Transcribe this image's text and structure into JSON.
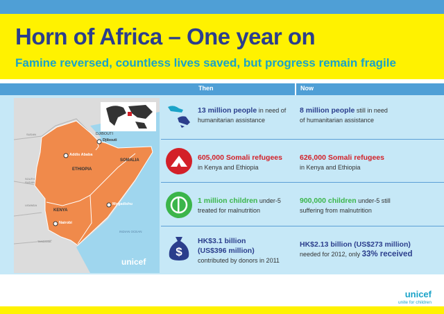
{
  "header": {
    "title": "Horn of Africa – One year on",
    "subtitle": "Famine reversed, countless lives saved, but progress remain fragile"
  },
  "columns": {
    "then": "Then",
    "now": "Now"
  },
  "map": {
    "labels": {
      "djibouti_country": "DJIBOUTI",
      "djibouti_city": "Djibouti",
      "addis_ababa": "Addis Ababa",
      "ethiopia": "ETHIOPIA",
      "somalia": "SOMALIA",
      "mogadishu": "Mogadishu",
      "kenya": "KENYA",
      "nairobi": "Nairobi",
      "indian_ocean": "INDIAN OCEAN",
      "sudan": "SUDAN",
      "south_sudan": "SOUTH SUDAN",
      "uganda": "UGANDA",
      "tanzania": "TANZANIA"
    },
    "logo": "unicef"
  },
  "rows": [
    {
      "icon": "helping-hands-icon",
      "then_highlight": "13 million people",
      "then_rest1": " in need of",
      "then_rest2": "humanitarian assistance",
      "now_highlight": "8 million people",
      "now_rest1": " still in need",
      "now_rest2": "of humanitarian assistance"
    },
    {
      "icon": "refugee-tent-icon",
      "then_highlight": "605,000 Somali refugees",
      "then_rest2": "in Kenya and Ethiopia",
      "now_highlight": "626,000 Somali refugees",
      "now_rest2": "in Kenya and Ethiopia"
    },
    {
      "icon": "nutrition-plate-icon",
      "then_highlight": "1 million children",
      "then_rest1": " under-5",
      "then_rest2": "treated for malnutrition",
      "now_highlight": "900,000 children",
      "now_rest1": " under-5 still",
      "now_rest2": "suffering from malnutrition"
    },
    {
      "icon": "money-bag-icon",
      "then_highlight": "HK$3.1 billion",
      "then_highlight2": "(US$396 million)",
      "then_rest2": "contributed by donors in 2011",
      "now_highlight": "HK$2.13 billion (US$273 million)",
      "now_rest1": "needed for 2012, only ",
      "now_highlight2": "33% received"
    }
  ],
  "footer": {
    "logo_name": "unicef",
    "logo_tagline": "unite for children"
  },
  "colors": {
    "yellow": "#fff200",
    "blue": "#4f9fd6",
    "navy": "#2b3e8c",
    "cyan": "#1aa3c8",
    "red": "#d32028",
    "green": "#3bb54a",
    "light_blue": "#c6e8f7",
    "map_orange": "#f08a4b"
  }
}
